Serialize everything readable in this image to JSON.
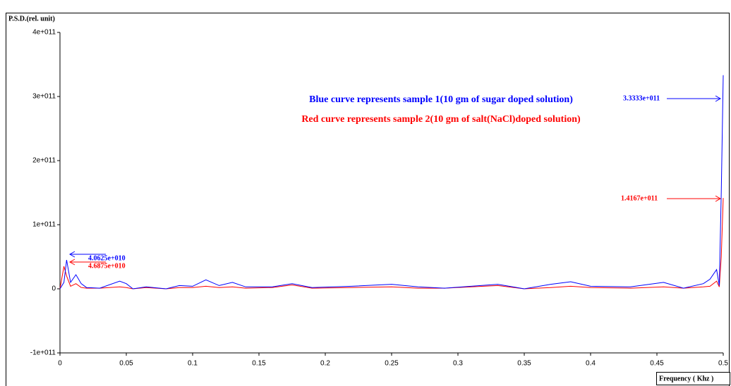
{
  "chart_data": {
    "type": "line",
    "ylabel": "P.S.D.(rel. unit)",
    "xlabel": "Frequency ( Khz )",
    "x": [
      0,
      0.003,
      0.005,
      0.008,
      0.012,
      0.016,
      0.02,
      0.03,
      0.045,
      0.05,
      0.055,
      0.065,
      0.08,
      0.09,
      0.1,
      0.11,
      0.12,
      0.13,
      0.14,
      0.16,
      0.175,
      0.19,
      0.22,
      0.25,
      0.27,
      0.29,
      0.33,
      0.35,
      0.37,
      0.385,
      0.4,
      0.43,
      0.455,
      0.47,
      0.485,
      0.49,
      0.495,
      0.497,
      0.4985,
      0.5
    ],
    "series": [
      {
        "name": "Blue curve represents sample 1(10 gm of sugar doped solution)",
        "color": "#0000ff",
        "values": [
          0,
          10000000000.0,
          45000000000.0,
          10000000000.0,
          22000000000.0,
          8000000000.0,
          2000000000.0,
          1000000000.0,
          12000000000.0,
          8000000000.0,
          0,
          3000000000.0,
          0,
          5000000000.0,
          4000000000.0,
          14000000000.0,
          5000000000.0,
          10000000000.0,
          3000000000.0,
          3000000000.0,
          8000000000.0,
          2000000000.0,
          4000000000.0,
          7000000000.0,
          3000000000.0,
          1000000000.0,
          7000000000.0,
          0,
          7000000000.0,
          11000000000.0,
          4000000000.0,
          3000000000.0,
          10000000000.0,
          1000000000.0,
          8000000000.0,
          15000000000.0,
          30000000000.0,
          5000000000.0,
          150000000000.0,
          333330000000.0
        ]
      },
      {
        "name": "Red curve represents sample 2(10 gm of salt(NaCl)doped solution)",
        "color": "#ff0000",
        "values": [
          0,
          35000000000.0,
          20000000000.0,
          4000000000.0,
          8000000000.0,
          2000000000.0,
          1000000000.0,
          1000000000.0,
          3000000000.0,
          2000000000.0,
          0,
          2000000000.0,
          0,
          2000000000.0,
          2000000000.0,
          4000000000.0,
          2000000000.0,
          3000000000.0,
          1000000000.0,
          2000000000.0,
          6000000000.0,
          1000000000.0,
          2000000000.0,
          3000000000.0,
          1000000000.0,
          1000000000.0,
          5000000000.0,
          0,
          2000000000.0,
          4000000000.0,
          2000000000.0,
          1000000000.0,
          3000000000.0,
          1000000000.0,
          3000000000.0,
          4000000000.0,
          12000000000.0,
          3000000000.0,
          50000000000.0,
          141670000000.0
        ]
      }
    ],
    "annotations": [
      {
        "text": "3.3333e+011",
        "color": "#0000ff"
      },
      {
        "text": "1.4167e+011",
        "color": "#ff0000"
      },
      {
        "text": "4.0625e+010",
        "color": "#0000ff"
      },
      {
        "text": "4.6875e+010",
        "color": "#ff0000"
      }
    ],
    "xlim": [
      0,
      0.5
    ],
    "xticks": [
      0,
      0.05,
      0.1,
      0.15,
      0.2,
      0.25,
      0.3,
      0.35,
      0.4,
      0.45,
      0.5
    ],
    "ylim": [
      -100000000000.0,
      400000000000.0
    ],
    "yticks": [
      {
        "value": -100000000000.0,
        "label": "-1e+011"
      },
      0,
      {
        "value": 100000000000.0,
        "label": "1e+011"
      },
      {
        "value": 200000000000.0,
        "label": "2e+011"
      },
      {
        "value": 300000000000.0,
        "label": "3e+011"
      },
      {
        "value": 400000000000.0,
        "label": "4e+011"
      }
    ]
  }
}
